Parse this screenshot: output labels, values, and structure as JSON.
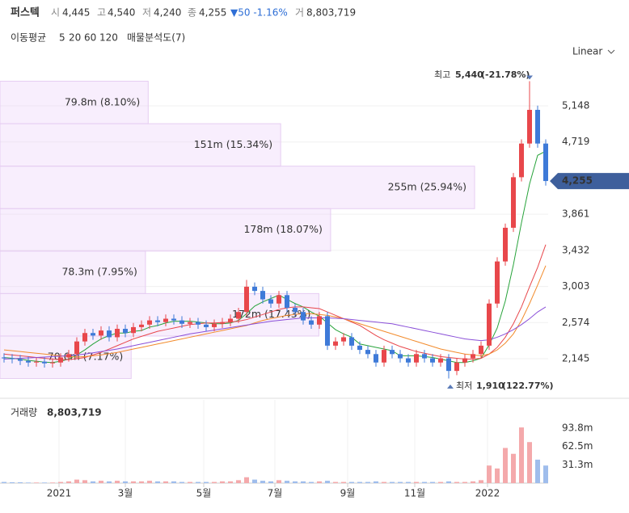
{
  "header": {
    "name": "퍼스텍",
    "open_label": "시",
    "open": "4,445",
    "high_label": "고",
    "high": "4,540",
    "low_label": "저",
    "low": "4,240",
    "close_label": "종",
    "close": "4,255",
    "change": "▼50 -1.16%",
    "volume_label": "거",
    "volume": "8,803,719"
  },
  "legend": {
    "title": "이동평균",
    "analysis": "매물분석도(7)"
  },
  "scale_menu": "Linear",
  "chart_data": [
    {
      "type": "candlestick",
      "up_color": "#e8474b",
      "down_color": "#3e7ad8",
      "open": [
        2160,
        2150,
        2140,
        2120,
        2100,
        2110,
        2090,
        2100,
        2160,
        2200,
        2350,
        2450,
        2420,
        2480,
        2400,
        2500,
        2450,
        2520,
        2550,
        2600,
        2580,
        2620,
        2600,
        2560,
        2580,
        2550,
        2520,
        2560,
        2580,
        2620,
        2700,
        3000,
        2950,
        2850,
        2800,
        2900,
        2750,
        2700,
        2600,
        2550,
        2650,
        2300,
        2350,
        2400,
        2300,
        2250,
        2200,
        2100,
        2250,
        2200,
        2150,
        2100,
        2200,
        2150,
        2100,
        2150,
        2000,
        2100,
        2150,
        2200,
        2300,
        2800,
        3300,
        3700,
        4300,
        4700,
        5100,
        4700
      ],
      "high": [
        2210,
        2200,
        2190,
        2170,
        2160,
        2160,
        2150,
        2210,
        2250,
        2400,
        2500,
        2500,
        2530,
        2530,
        2550,
        2550,
        2570,
        2600,
        2650,
        2650,
        2670,
        2670,
        2650,
        2630,
        2630,
        2600,
        2610,
        2630,
        2670,
        2750,
        3080,
        3050,
        3000,
        2900,
        2950,
        2950,
        2800,
        2750,
        2650,
        2700,
        2700,
        2400,
        2450,
        2450,
        2350,
        2300,
        2250,
        2300,
        2300,
        2250,
        2200,
        2250,
        2250,
        2200,
        2200,
        2200,
        2150,
        2200,
        2250,
        2350,
        2850,
        3350,
        3750,
        4350,
        4750,
        5440,
        5150,
        4750
      ],
      "low": [
        2100,
        2090,
        2070,
        2050,
        2050,
        2040,
        2040,
        2050,
        2110,
        2150,
        2300,
        2370,
        2370,
        2350,
        2350,
        2400,
        2400,
        2470,
        2500,
        2530,
        2530,
        2550,
        2510,
        2510,
        2500,
        2470,
        2470,
        2510,
        2530,
        2570,
        2650,
        2900,
        2800,
        2750,
        2750,
        2700,
        2650,
        2550,
        2500,
        2500,
        2250,
        2250,
        2300,
        2250,
        2200,
        2150,
        2050,
        2050,
        2150,
        2100,
        2050,
        2050,
        2100,
        2050,
        2050,
        1910,
        1950,
        2050,
        2100,
        2150,
        2250,
        2750,
        3250,
        3650,
        4250,
        4650,
        4650,
        4200
      ],
      "close": [
        2150,
        2140,
        2120,
        2100,
        2110,
        2090,
        2100,
        2160,
        2200,
        2350,
        2450,
        2420,
        2480,
        2400,
        2500,
        2450,
        2520,
        2550,
        2600,
        2580,
        2620,
        2600,
        2560,
        2580,
        2550,
        2520,
        2560,
        2580,
        2620,
        2700,
        3000,
        2950,
        2850,
        2800,
        2900,
        2750,
        2700,
        2600,
        2550,
        2650,
        2300,
        2350,
        2400,
        2300,
        2250,
        2200,
        2100,
        2250,
        2200,
        2150,
        2100,
        2200,
        2150,
        2100,
        2150,
        2000,
        2100,
        2150,
        2200,
        2300,
        2800,
        3300,
        3700,
        4300,
        4700,
        5100,
        4700,
        4255
      ],
      "series": [
        {
          "name": "5",
          "color": "#27a33a",
          "values": [
            2160,
            2150,
            2140,
            2125,
            2115,
            2105,
            2100,
            2115,
            2140,
            2190,
            2250,
            2320,
            2380,
            2420,
            2450,
            2450,
            2470,
            2480,
            2520,
            2540,
            2570,
            2590,
            2590,
            2590,
            2580,
            2570,
            2560,
            2560,
            2570,
            2600,
            2680,
            2770,
            2820,
            2860,
            2900,
            2850,
            2800,
            2760,
            2700,
            2650,
            2570,
            2490,
            2440,
            2400,
            2320,
            2300,
            2280,
            2260,
            2240,
            2180,
            2180,
            2180,
            2170,
            2160,
            2140,
            2120,
            2100,
            2100,
            2120,
            2150,
            2310,
            2510,
            2830,
            3260,
            3760,
            4220,
            4560,
            4610
          ]
        },
        {
          "name": "20",
          "color": "#e8474b",
          "values": [
            2200,
            2190,
            2180,
            2170,
            2160,
            2150,
            2140,
            2135,
            2135,
            2145,
            2160,
            2190,
            2220,
            2260,
            2300,
            2340,
            2380,
            2410,
            2440,
            2470,
            2490,
            2510,
            2530,
            2550,
            2560,
            2570,
            2570,
            2575,
            2580,
            2590,
            2610,
            2640,
            2670,
            2700,
            2730,
            2750,
            2760,
            2760,
            2750,
            2740,
            2700,
            2660,
            2620,
            2580,
            2540,
            2480,
            2420,
            2370,
            2330,
            2290,
            2260,
            2230,
            2210,
            2190,
            2170,
            2160,
            2150,
            2140,
            2140,
            2150,
            2200,
            2280,
            2400,
            2560,
            2760,
            3000,
            3230,
            3500
          ]
        },
        {
          "name": "60",
          "color": "#f28b2c",
          "values": [
            2250,
            2240,
            2230,
            2220,
            2210,
            2200,
            2190,
            2180,
            2170,
            2165,
            2170,
            2180,
            2190,
            2205,
            2220,
            2240,
            2260,
            2280,
            2300,
            2320,
            2340,
            2360,
            2380,
            2400,
            2420,
            2440,
            2460,
            2480,
            2500,
            2520,
            2540,
            2570,
            2600,
            2620,
            2640,
            2660,
            2670,
            2680,
            2680,
            2670,
            2660,
            2640,
            2620,
            2590,
            2560,
            2530,
            2500,
            2470,
            2440,
            2410,
            2380,
            2350,
            2320,
            2290,
            2260,
            2240,
            2220,
            2200,
            2190,
            2180,
            2200,
            2250,
            2330,
            2440,
            2600,
            2800,
            3020,
            3250
          ]
        },
        {
          "name": "120",
          "color": "#8a4fd8",
          "values": [
            2140,
            2145,
            2150,
            2155,
            2160,
            2165,
            2170,
            2175,
            2180,
            2190,
            2200,
            2215,
            2230,
            2245,
            2260,
            2280,
            2300,
            2320,
            2340,
            2360,
            2380,
            2400,
            2420,
            2440,
            2455,
            2470,
            2485,
            2500,
            2515,
            2530,
            2545,
            2560,
            2575,
            2590,
            2600,
            2610,
            2620,
            2630,
            2630,
            2630,
            2630,
            2625,
            2620,
            2610,
            2600,
            2590,
            2580,
            2570,
            2560,
            2540,
            2520,
            2500,
            2480,
            2460,
            2440,
            2420,
            2400,
            2380,
            2370,
            2360,
            2370,
            2400,
            2440,
            2490,
            2550,
            2620,
            2700,
            2760
          ]
        }
      ],
      "ylim": [
        1704,
        5589
      ],
      "yticks": [
        {
          "value": 2145,
          "label": "2,145"
        },
        {
          "value": 2574,
          "label": "2,574"
        },
        {
          "value": 3003,
          "label": "3,003"
        },
        {
          "value": 3432,
          "label": "3,432"
        },
        {
          "value": 3861,
          "label": "3,861"
        },
        {
          "value": 4719,
          "label": "4,719"
        },
        {
          "value": 5148,
          "label": "5,148"
        }
      ],
      "xticks": [
        {
          "value": 6.8,
          "label": "2021"
        },
        {
          "value": 15,
          "label": "3월"
        },
        {
          "value": 24.7,
          "label": "5월"
        },
        {
          "value": 33.5,
          "label": "7월"
        },
        {
          "value": 42.5,
          "label": "9월"
        },
        {
          "value": 50.8,
          "label": "11월"
        },
        {
          "value": 59.8,
          "label": "2022"
        }
      ],
      "last_price": {
        "value": 4255,
        "label": "4,255"
      },
      "max": {
        "label": "최고",
        "value": 5440,
        "value_label": "5,440",
        "change": "(-21.78%)"
      },
      "min": {
        "label": "최저",
        "value": 1910,
        "value_label": "1,910",
        "change": "(122.77%)"
      },
      "profile": {
        "labels": [
          "79.8m (8.10%)",
          "151m (15.34%)",
          "255m (25.94%)",
          "178m (18.07%)",
          "78.3m (7.95%)",
          "172m (17.43%)",
          "70.6m (7.17%)"
        ],
        "volumes": [
          79800000,
          151000000,
          255000000,
          178000000,
          78300000,
          172000000,
          70600000
        ],
        "percents": [
          8.1,
          15.34,
          25.94,
          18.07,
          7.95,
          17.43,
          7.17
        ]
      }
    },
    {
      "type": "bar",
      "title": "거래량",
      "title_value": "8,803,719",
      "values": [
        2000000,
        1500000,
        1500000,
        1000000,
        1000000,
        1000000,
        1000000,
        2000000,
        3000000,
        6000000,
        5000000,
        3000000,
        4000000,
        3000000,
        4000000,
        3000000,
        3000000,
        3000000,
        4000000,
        3000000,
        3000000,
        3000000,
        2000000,
        2000000,
        2000000,
        2000000,
        2000000,
        3000000,
        3000000,
        5000000,
        10000000,
        6000000,
        4000000,
        3000000,
        5000000,
        4000000,
        3000000,
        3000000,
        2000000,
        3000000,
        4000000,
        2000000,
        2000000,
        2000000,
        2000000,
        2000000,
        3000000,
        2000000,
        2000000,
        2000000,
        2000000,
        2000000,
        2000000,
        2000000,
        2000000,
        3000000,
        2000000,
        2000000,
        3000000,
        5000000,
        30000000,
        25000000,
        60000000,
        50000000,
        95000000,
        70000000,
        40000000,
        30000000
      ],
      "ylim": [
        0,
        142000000
      ],
      "yticks": [
        {
          "value": 31300000,
          "label": "31.3m"
        },
        {
          "value": 62500000,
          "label": "62.5m"
        },
        {
          "value": 93800000,
          "label": "93.8m"
        }
      ]
    }
  ]
}
